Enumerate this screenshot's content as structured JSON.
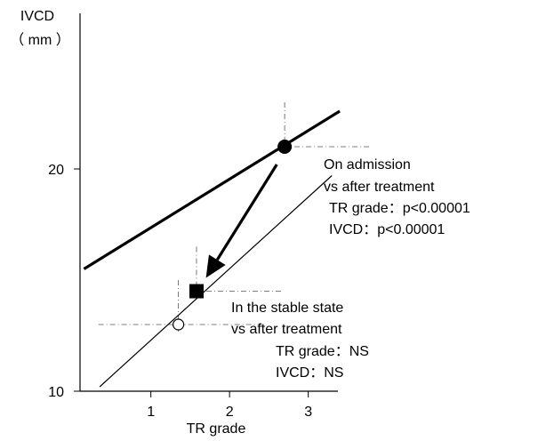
{
  "chart_data": {
    "type": "line",
    "ylabel_line1": "IVCD",
    "ylabel_line2": "（ mm ）",
    "xlabel": "TR grade",
    "xlim": [
      0.1,
      3.4
    ],
    "ylim": [
      10,
      26
    ],
    "x_ticks": [
      1,
      2,
      3
    ],
    "y_ticks": [
      10,
      20
    ],
    "series": [
      {
        "style": "thick",
        "x": [
          0.15,
          3.4
        ],
        "y": [
          15.5,
          22.6
        ]
      },
      {
        "style": "thin",
        "x": [
          0.35,
          3.3
        ],
        "y": [
          10.2,
          19.7
        ]
      }
    ],
    "points": [
      {
        "marker": "filled-circle",
        "x": 2.7,
        "y": 21.0
      },
      {
        "marker": "filled-square",
        "x": 1.58,
        "y": 14.5
      },
      {
        "marker": "open-circle",
        "x": 1.35,
        "y": 13.0
      }
    ],
    "arrow": {
      "from": [
        2.6,
        20.2
      ],
      "to": [
        1.7,
        15.1
      ]
    },
    "annotations": {
      "admission": [
        "On admission",
        "vs after treatment",
        "TR grade：p<0.00001",
        "IVCD：p<0.00001"
      ],
      "stable": [
        "In the stable state",
        "vs after treatment",
        "TR grade：NS",
        "IVCD：NS"
      ]
    }
  }
}
